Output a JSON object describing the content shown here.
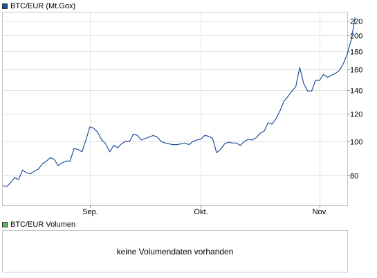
{
  "price_legend": {
    "label": "BTC/EUR (Mt.Gox)",
    "color": "#1f4e9c"
  },
  "volume_legend": {
    "label": "BTC/EUR Volumen",
    "color": "#5cb85c"
  },
  "volume_panel": {
    "message": "keine Volumendaten vorhanden"
  },
  "chart_data": {
    "type": "line",
    "yscale": "log",
    "ylim": [
      66,
      232
    ],
    "xlim": [
      0,
      87
    ],
    "yticks": [
      80,
      100,
      120,
      140,
      160,
      180,
      200,
      220
    ],
    "xticks": [
      {
        "x": 22,
        "label": "Sep."
      },
      {
        "x": 50,
        "label": "Okt."
      },
      {
        "x": 80,
        "label": "Nov."
      }
    ],
    "series": [
      {
        "color": "#1f4e9c",
        "values": [
          75,
          74.5,
          76.5,
          79,
          78,
          83,
          81.5,
          81,
          82.5,
          83.5,
          86.5,
          88,
          90,
          89,
          85.5,
          87,
          88,
          88,
          95.5,
          95,
          93.5,
          101,
          110,
          109,
          106,
          101,
          98.5,
          93.5,
          97.5,
          96,
          98.5,
          100,
          100,
          105,
          104,
          101,
          102,
          103,
          104,
          103,
          100,
          99,
          98.5,
          98,
          98,
          98.5,
          99,
          98,
          100,
          101,
          101.5,
          104,
          103.5,
          102,
          93,
          95,
          98.5,
          99.5,
          99,
          99,
          97.5,
          100,
          101.5,
          101,
          102.5,
          105.5,
          107,
          113,
          112,
          116,
          122,
          130,
          134,
          139,
          143,
          162,
          146,
          139,
          139,
          149,
          149,
          155,
          152,
          154,
          156,
          159,
          166,
          177,
          194,
          225
        ]
      }
    ]
  }
}
